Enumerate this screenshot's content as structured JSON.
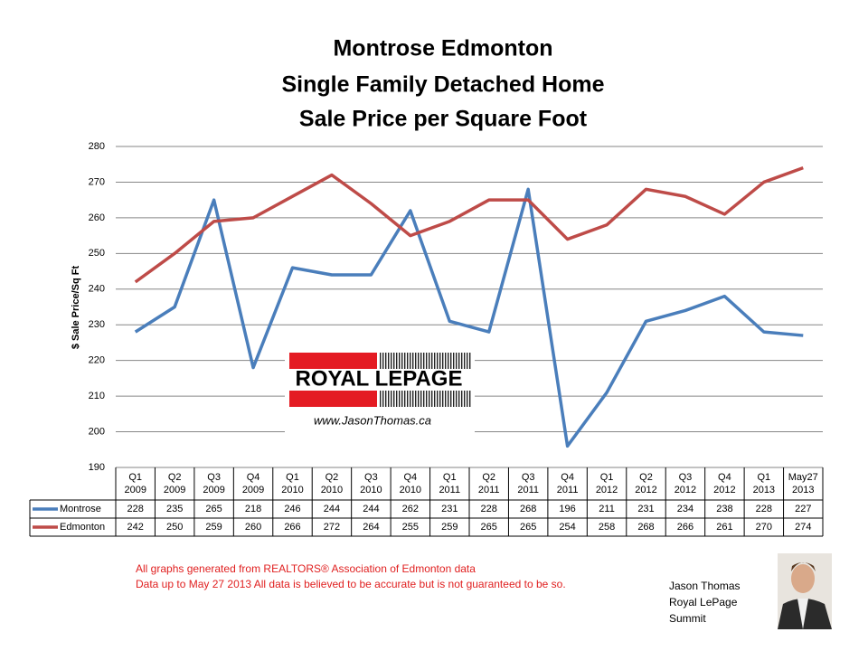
{
  "chart_data": {
    "type": "line",
    "title": [
      "Montrose Edmonton",
      "Single Family Detached Home",
      "Sale Price per Square Foot"
    ],
    "y_label": "$ Sale Price/Sq Ft",
    "categories": [
      "Q1 2009",
      "Q2 2009",
      "Q3 2009",
      "Q4 2009",
      "Q1 2010",
      "Q2 2010",
      "Q3 2010",
      "Q4 2010",
      "Q1 2011",
      "Q2 2011",
      "Q3 2011",
      "Q4 2011",
      "Q1 2012",
      "Q2 2012",
      "Q3 2012",
      "Q4 2012",
      "Q1 2013",
      "May27 2013"
    ],
    "series": [
      {
        "name": "Montrose",
        "color": "#4a7ebb",
        "values": [
          228,
          235,
          265,
          218,
          246,
          244,
          244,
          262,
          231,
          228,
          268,
          196,
          211,
          231,
          234,
          238,
          228,
          227
        ]
      },
      {
        "name": "Edmonton",
        "color": "#be4b48",
        "values": [
          242,
          250,
          259,
          260,
          266,
          272,
          264,
          255,
          259,
          265,
          265,
          254,
          258,
          268,
          266,
          261,
          270,
          274
        ]
      }
    ],
    "ylim": [
      190,
      280
    ],
    "yticks": [
      190,
      200,
      210,
      220,
      230,
      240,
      250,
      260,
      270,
      280
    ],
    "grid": true
  },
  "logo": {
    "brand": "ROYAL LEPAGE",
    "url": "www.JasonThomas.ca"
  },
  "notes": [
    "All graphs generated from REALTORS® Association of Edmonton data",
    "Data up to  May 27 2013  All data is believed to be accurate but is not guaranteed to be so."
  ],
  "agent": [
    "Jason Thomas",
    "Royal LePage",
    "Summit"
  ]
}
